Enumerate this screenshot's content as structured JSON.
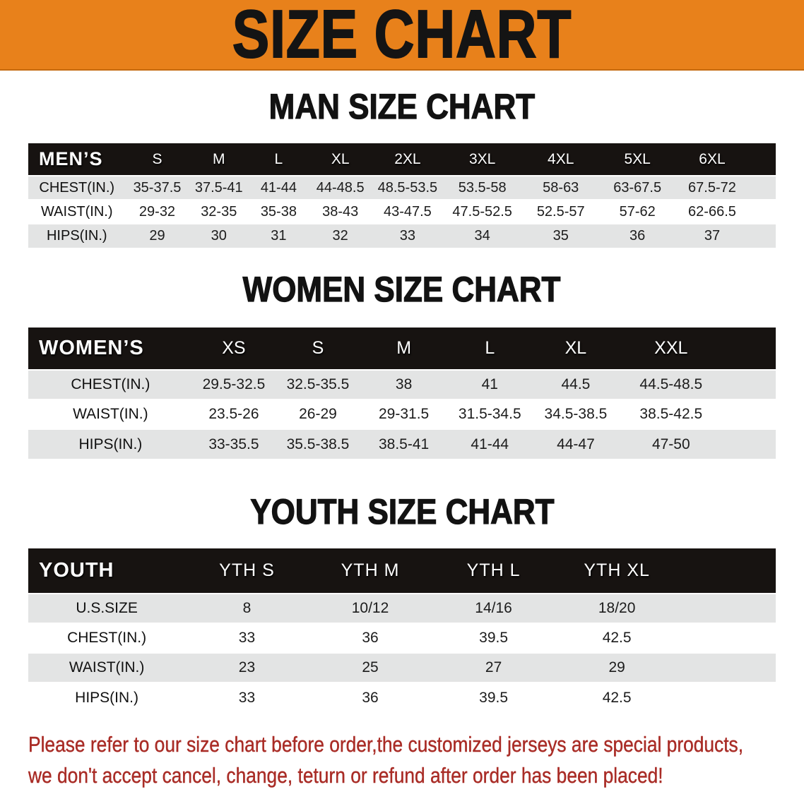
{
  "banner": {
    "title": "SIZE CHART",
    "bg_color": "#E8811B",
    "text_color": "#141414"
  },
  "sections": [
    {
      "heading": "MAN SIZE CHART",
      "table": {
        "header_label": "MEN’S",
        "columns": [
          "S",
          "M",
          "L",
          "XL",
          "2XL",
          "3XL",
          "4XL",
          "5XL",
          "6XL"
        ],
        "rows": [
          {
            "label": "CHEST(IN.)",
            "values": [
              "35-37.5",
              "37.5-41",
              "41-44",
              "44-48.5",
              "48.5-53.5",
              "53.5-58",
              "58-63",
              "63-67.5",
              "67.5-72"
            ]
          },
          {
            "label": "WAIST(IN.)",
            "values": [
              "29-32",
              "32-35",
              "35-38",
              "38-43",
              "43-47.5",
              "47.5-52.5",
              "52.5-57",
              "57-62",
              "62-66.5"
            ]
          },
          {
            "label": "HIPS(IN.)",
            "values": [
              "29",
              "30",
              "31",
              "32",
              "33",
              "34",
              "35",
              "36",
              "37"
            ]
          }
        ]
      }
    },
    {
      "heading": "WOMEN SIZE CHART",
      "table": {
        "header_label": "WOMEN’S",
        "columns": [
          "XS",
          "S",
          "M",
          "L",
          "XL",
          "XXL"
        ],
        "rows": [
          {
            "label": "CHEST(IN.)",
            "values": [
              "29.5-32.5",
              "32.5-35.5",
              "38",
              "41",
              "44.5",
              "44.5-48.5"
            ]
          },
          {
            "label": "WAIST(IN.)",
            "values": [
              "23.5-26",
              "26-29",
              "29-31.5",
              "31.5-34.5",
              "34.5-38.5",
              "38.5-42.5"
            ]
          },
          {
            "label": "HIPS(IN.)",
            "values": [
              "33-35.5",
              "35.5-38.5",
              "38.5-41",
              "41-44",
              "44-47",
              "47-50"
            ]
          }
        ]
      }
    },
    {
      "heading": "YOUTH SIZE CHART",
      "table": {
        "header_label": "YOUTH",
        "columns": [
          "YTH S",
          "YTH M",
          "YTH L",
          "YTH XL"
        ],
        "rows": [
          {
            "label": "U.S.SIZE",
            "values": [
              "8",
              "10/12",
              "14/16",
              "18/20"
            ]
          },
          {
            "label": "CHEST(IN.)",
            "values": [
              "33",
              "36",
              "39.5",
              "42.5"
            ]
          },
          {
            "label": "WAIST(IN.)",
            "values": [
              "23",
              "25",
              "27",
              "29"
            ]
          },
          {
            "label": "HIPS(IN.)",
            "values": [
              "33",
              "36",
              "39.5",
              "42.5"
            ]
          }
        ]
      }
    }
  ],
  "footer": {
    "line1": "Please refer to our size chart before order,the customized jerseys are special products,",
    "line2": "we don't accept cancel, change, teturn or refund after order has been placed!",
    "text_color": "#A92C26"
  },
  "colors": {
    "header_bar": "#171311",
    "row_alt_gray": "#E3E4E4",
    "row_white": "#FFFFFF"
  }
}
